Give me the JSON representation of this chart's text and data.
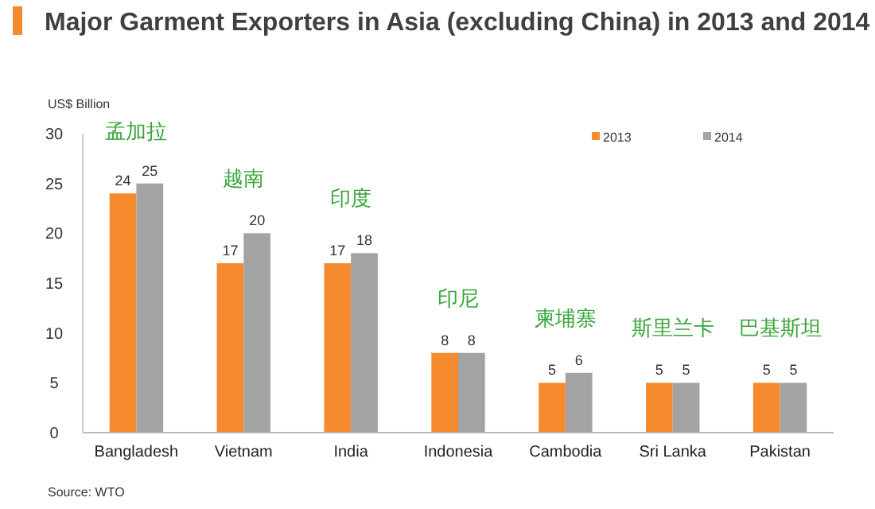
{
  "chart_data": {
    "type": "bar",
    "title": "Major Garment Exporters in Asia (excluding China) in 2013 and 2014",
    "ylabel": "US$ Billion",
    "categories": [
      "Bangladesh",
      "Vietnam",
      "India",
      "Indonesia",
      "Cambodia",
      "Sri Lanka",
      "Pakistan"
    ],
    "series": [
      {
        "name": "2013",
        "color": "#f58a2e",
        "values": [
          24,
          17,
          17,
          8,
          5,
          5,
          5
        ]
      },
      {
        "name": "2014",
        "color": "#a3a3a3",
        "values": [
          25,
          20,
          18,
          8,
          6,
          5,
          5
        ]
      }
    ],
    "ylim": [
      0,
      30
    ],
    "yticks": [
      0,
      5,
      10,
      15,
      20,
      25,
      30
    ],
    "grid": false,
    "legend": "top right",
    "data_labels": true,
    "annotations": [
      "孟加拉",
      "越南",
      "印度",
      "印尼",
      "柬埔寨",
      "斯里兰卡",
      "巴基斯坦",
      "Source: WTO"
    ]
  }
}
